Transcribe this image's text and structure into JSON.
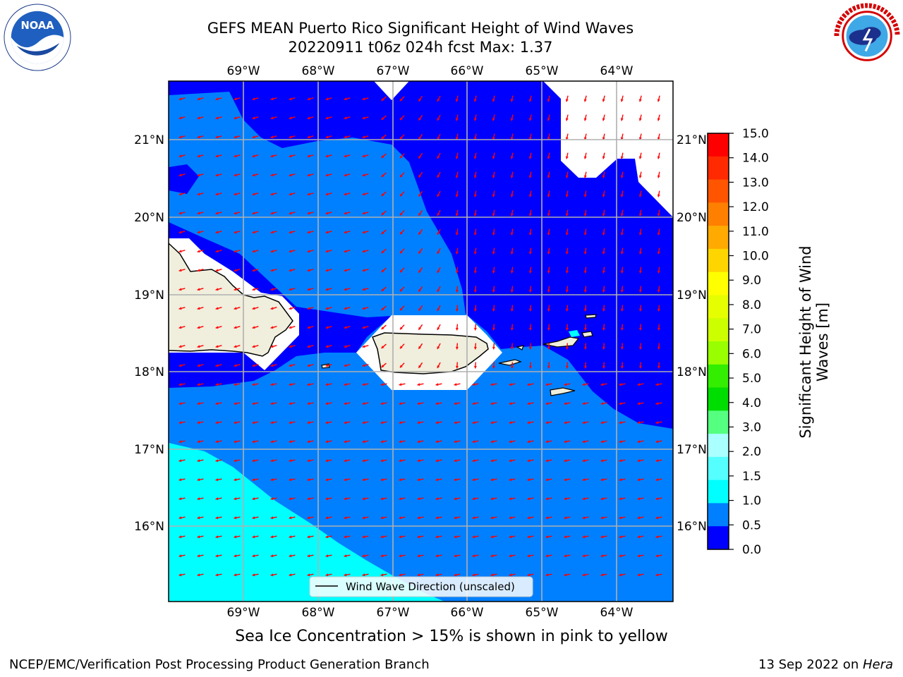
{
  "header": {
    "title_line1": "GEFS MEAN Puerto Rico Significant Height of Wind Waves",
    "title_line2": "20220911 t06z 024h fcst   Max: 1.37"
  },
  "logos": {
    "left": "noaa-logo",
    "left_text": "NOAA",
    "left_ring_text": "NATIONAL OCEANIC AND ATMOSPHERIC ADMINISTRATION · U.S. DEPARTMENT OF COMMERCE",
    "right": "national-weather-service-logo",
    "right_ring_text": "NATIONAL WEATHER SERVICE"
  },
  "map": {
    "lon_ticks": [
      "69°W",
      "68°W",
      "67°W",
      "66°W",
      "65°W",
      "64°W"
    ],
    "lat_ticks": [
      "21°N",
      "20°N",
      "19°N",
      "18°N",
      "17°N",
      "16°N"
    ],
    "legend_label": "Wind Wave Direction (unscaled)",
    "colors": {
      "band_0_0_5": "#0000ff",
      "band_0_5_1_0": "#0080ff",
      "band_1_0_1_5": "#00ffff",
      "land": "#f0eedc",
      "arrows": "#ff0000",
      "grid": "#b0b0b0"
    }
  },
  "colorbar": {
    "label_line1": "Significant Height of Wind",
    "label_line2": "Waves [m]",
    "ticks": [
      "15.0",
      "14.0",
      "13.0",
      "12.0",
      "11.0",
      "10.0",
      "9.0",
      "8.0",
      "7.0",
      "6.0",
      "5.0",
      "4.0",
      "3.0",
      "2.0",
      "1.5",
      "1.0",
      "0.5",
      "0.0"
    ],
    "colors": [
      "#ff0000",
      "#ff2a00",
      "#ff5500",
      "#ff8000",
      "#ffaa00",
      "#ffd500",
      "#ffff00",
      "#e6ff00",
      "#ccff00",
      "#99ff00",
      "#33ee00",
      "#00dd00",
      "#55ff80",
      "#aaffff",
      "#55ffff",
      "#00ffff",
      "#0080ff",
      "#0000ff"
    ]
  },
  "ice_note": "Sea Ice Concentration > 15% is shown in pink to yellow",
  "footer": {
    "left": "NCEP/EMC/Verification Post Processing Product Generation Branch",
    "right_date": "13 Sep 2022 on ",
    "right_host": "Hera"
  }
}
